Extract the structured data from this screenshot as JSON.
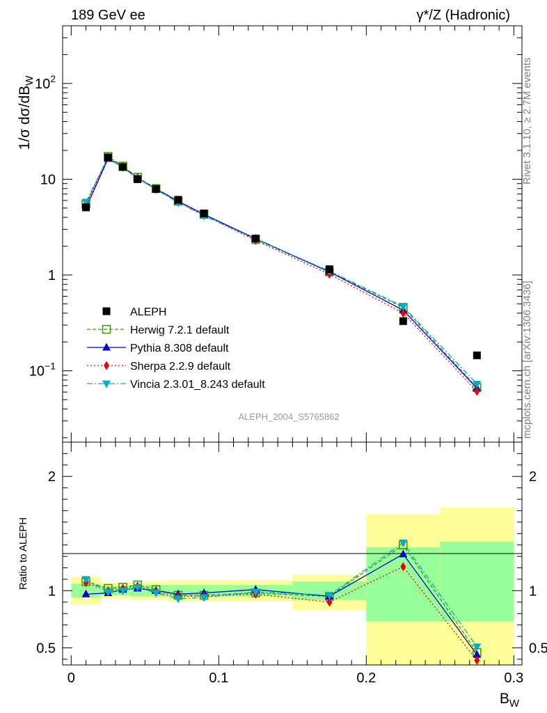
{
  "header": {
    "left_title": "189 GeV ee",
    "right_title": "γ*/Z (Hadronic)"
  },
  "side_labels": {
    "rivet": "Rivet 3.1.10, ≥ 2.7M events",
    "mcplots": "mcplots.cern.ch [arXiv:1306.3436]"
  },
  "analysis_label": "ALEPH_2004_S5765862",
  "colors": {
    "aleph": "#000000",
    "herwig": "#339900",
    "pythia": "#0000cc",
    "sherpa": "#e60000",
    "vincia": "#00aacc",
    "band_inner": "#99ff99",
    "band_outer": "#ffff99"
  },
  "chart_data": [
    {
      "type": "line",
      "panel": "main",
      "ylabel": "1/σ dσ/dB_W",
      "ylabel_parts": {
        "pre": "1/σ  dσ/dB",
        "sub": "W"
      },
      "yscale": "log",
      "xlim": [
        0,
        0.3
      ],
      "ylim": [
        0.018,
        400
      ],
      "y_tick_labels": [
        {
          "value": 0.1,
          "base": "10",
          "exp": "−1"
        },
        {
          "value": 1,
          "base": "1",
          "exp": ""
        },
        {
          "value": 10,
          "base": "10",
          "exp": ""
        },
        {
          "value": 100,
          "base": "10",
          "exp": "2"
        }
      ],
      "legend_position": "center-left",
      "x": [
        0.01,
        0.025,
        0.035,
        0.045,
        0.0575,
        0.0725,
        0.09,
        0.125,
        0.175,
        0.225,
        0.275
      ],
      "series": [
        {
          "name": "ALEPH",
          "key": "aleph",
          "marker": "square",
          "values": [
            5.1,
            16.9,
            13.4,
            10.0,
            7.9,
            6.1,
            4.4,
            2.4,
            1.15,
            0.33,
            0.145
          ]
        },
        {
          "name": "Herwig 7.2.1 default",
          "key": "herwig",
          "marker": "open-square",
          "dash": "5,3",
          "values": [
            5.5,
            17.3,
            13.7,
            10.5,
            8.0,
            5.9,
            4.3,
            2.35,
            1.08,
            0.46,
            0.067
          ]
        },
        {
          "name": "Pythia 8.308 default",
          "key": "pythia",
          "marker": "triangle-up",
          "dash": "",
          "values": [
            5.0,
            16.4,
            13.4,
            10.2,
            7.9,
            5.9,
            4.3,
            2.4,
            1.08,
            0.43,
            0.066
          ]
        },
        {
          "name": "Sherpa 2.2.9 default",
          "key": "sherpa",
          "marker": "diamond",
          "dash": "2,3",
          "values": [
            5.4,
            16.9,
            13.6,
            10.4,
            7.8,
            5.8,
            4.2,
            2.3,
            1.02,
            0.4,
            0.061
          ]
        },
        {
          "name": "Vincia 2.3.01_8.243 default",
          "key": "vincia",
          "marker": "triangle-down",
          "dash": "8,3,2,3",
          "values": [
            5.8,
            16.8,
            13.3,
            10.3,
            7.8,
            5.7,
            4.15,
            2.38,
            1.1,
            0.47,
            0.073
          ]
        }
      ]
    },
    {
      "type": "line",
      "panel": "ratio",
      "ylabel": "Ratio to ALEPH",
      "xlabel": "B_W",
      "xlabel_parts": {
        "pre": "B",
        "sub": "W"
      },
      "xlim": [
        0,
        0.3
      ],
      "ylim": [
        0.35,
        2.3
      ],
      "x_ticks": [
        0,
        0.1,
        0.2,
        0.3
      ],
      "x_tick_labels": [
        "0",
        "0.1",
        "0.2",
        "0.3"
      ],
      "y_ticks": [
        0.5,
        1,
        2
      ],
      "y_tick_labels": [
        "0.5",
        "1",
        "2"
      ],
      "bin_edges": [
        0,
        0.02,
        0.03,
        0.04,
        0.05,
        0.065,
        0.08,
        0.1,
        0.15,
        0.2,
        0.25,
        0.3
      ],
      "band_inner": [
        [
          0.94,
          1.06
        ],
        [
          0.96,
          1.04
        ],
        [
          0.96,
          1.04
        ],
        [
          0.95,
          1.05
        ],
        [
          0.95,
          1.05
        ],
        [
          0.95,
          1.05
        ],
        [
          0.95,
          1.05
        ],
        [
          0.95,
          1.05
        ],
        [
          0.92,
          1.08
        ],
        [
          0.73,
          1.38
        ],
        [
          0.73,
          1.43
        ]
      ],
      "band_outer": [
        [
          0.88,
          1.12
        ],
        [
          0.93,
          1.07
        ],
        [
          0.93,
          1.07
        ],
        [
          0.92,
          1.07
        ],
        [
          0.92,
          1.08
        ],
        [
          0.91,
          1.09
        ],
        [
          0.91,
          1.09
        ],
        [
          0.91,
          1.09
        ],
        [
          0.83,
          1.14
        ],
        [
          0.35,
          1.67
        ],
        [
          0.35,
          1.73
        ]
      ],
      "x": [
        0.01,
        0.025,
        0.035,
        0.045,
        0.0575,
        0.0725,
        0.09,
        0.125,
        0.175,
        0.225,
        0.275
      ],
      "series": [
        {
          "name": "Herwig 7.2.1 default",
          "key": "herwig",
          "marker": "open-square",
          "dash": "5,3",
          "values": [
            1.08,
            1.02,
            1.03,
            1.05,
            1.01,
            0.96,
            0.96,
            0.98,
            0.95,
            1.4,
            0.46
          ]
        },
        {
          "name": "Pythia 8.308 default",
          "key": "pythia",
          "marker": "triangle-up",
          "dash": "",
          "values": [
            0.97,
            0.98,
            1.01,
            1.02,
            1.0,
            0.97,
            0.98,
            1.01,
            0.95,
            1.32,
            0.44
          ]
        },
        {
          "name": "Sherpa 2.2.9 default",
          "key": "sherpa",
          "marker": "diamond",
          "dash": "2,3",
          "values": [
            1.07,
            1.0,
            1.02,
            1.04,
            0.99,
            0.95,
            0.95,
            0.97,
            0.9,
            1.21,
            0.39
          ]
        },
        {
          "name": "Vincia 2.3.01_8.243 default",
          "key": "vincia",
          "marker": "triangle-down",
          "dash": "8,3,2,3",
          "values": [
            1.1,
            0.99,
            1.0,
            1.03,
            0.98,
            0.93,
            0.94,
            0.99,
            0.96,
            1.42,
            0.51
          ]
        }
      ]
    }
  ]
}
